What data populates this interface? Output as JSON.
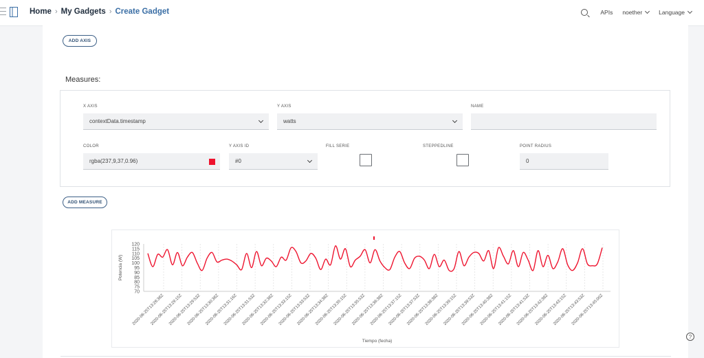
{
  "header": {
    "breadcrumb": [
      "Home",
      "My Gadgets",
      "Create Gadget"
    ],
    "apis_label": "APIs",
    "user_label": "noether",
    "language_label": "Language"
  },
  "buttons": {
    "add_axis": "ADD AXIS",
    "add_measure": "ADD MEASURE"
  },
  "measures": {
    "title": "Measures:",
    "x_axis_label": "X AXIS",
    "x_axis_value": "contextData.timestamp",
    "y_axis_label": "Y AXIS",
    "y_axis_value": "watts",
    "name_label": "NAME",
    "name_value": "",
    "color_label": "COLOR",
    "color_value": "rgba(237,9,37,0.96)",
    "y_axis_id_label": "Y AXIS ID",
    "y_axis_id_value": "#0",
    "fill_serie_label": "FILL SERIE",
    "fill_serie_checked": false,
    "steppedline_label": "STEPPEDLINE",
    "steppedline_checked": false,
    "point_radius_label": "POINT RADIUS",
    "point_radius_value": "0"
  },
  "chart_data": {
    "type": "line",
    "xlabel": "Tiempo (fecha)",
    "ylabel": "Potencia (W)",
    "ylim": [
      70,
      120
    ],
    "yticks": [
      70,
      75,
      80,
      85,
      90,
      95,
      100,
      105,
      110,
      115,
      120
    ],
    "line_color": "rgba(237,9,37,0.96)",
    "grid": "vertical-dashed",
    "x_tick_labels": [
      "2020-06-25T13:28:38Z",
      "2020-06-25T13:29:15Z",
      "2020-06-25T13:29:53Z",
      "2020-06-25T13:30:38Z",
      "2020-06-25T13:31:16Z",
      "2020-06-25T13:31:53Z",
      "2020-06-25T13:32:38Z",
      "2020-06-25T13:33:15Z",
      "2020-06-25T13:33:53Z",
      "2020-06-25T13:34:38Z",
      "2020-06-25T13:35:15Z",
      "2020-06-25T13:35:53Z",
      "2020-06-25T13:36:38Z",
      "2020-06-25T13:37:15Z",
      "2020-06-25T13:37:53Z",
      "2020-06-25T13:38:38Z",
      "2020-06-25T13:39:15Z",
      "2020-06-25T13:39:53Z",
      "2020-06-25T13:40:38Z",
      "2020-06-25T13:41:15Z",
      "2020-06-25T13:41:53Z",
      "2020-06-25T13:42:38Z",
      "2020-06-25T13:43:15Z",
      "2020-06-25T13:43:53Z",
      "2020-06-25T13:45:00Z"
    ],
    "values": [
      110,
      96,
      109,
      106,
      114,
      98,
      111,
      97,
      106,
      111,
      100,
      92,
      105,
      111,
      101,
      103,
      104,
      102,
      98,
      93,
      110,
      95,
      112,
      97,
      105,
      102,
      96,
      106,
      103,
      116,
      112,
      100,
      102,
      110,
      105,
      93,
      104,
      98,
      118,
      104,
      115,
      96,
      103,
      107,
      114,
      100,
      114,
      102,
      95,
      93,
      106,
      112,
      100,
      94,
      105,
      107,
      103,
      94,
      109,
      96,
      103,
      92,
      94,
      112,
      97,
      106,
      111,
      110,
      102,
      113,
      94,
      116,
      107,
      99,
      113,
      96,
      111,
      103,
      92,
      113,
      96,
      108,
      94,
      101,
      115,
      98,
      92,
      100,
      115,
      99,
      97,
      99,
      116
    ]
  }
}
